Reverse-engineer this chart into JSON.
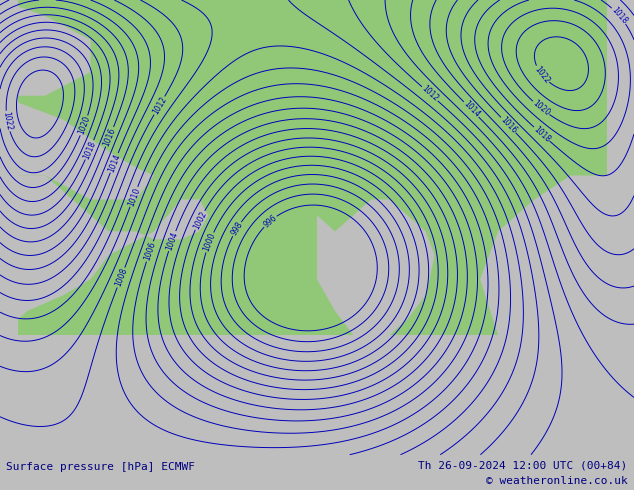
{
  "title_left": "Surface pressure [hPa] ECMWF",
  "title_right": "Th 26-09-2024 12:00 UTC (00+84)",
  "copyright": "© weatheronline.co.uk",
  "bg_color": "#bebebe",
  "land_color": "#90c878",
  "sea_color": "#bebebe",
  "contour_color": "#0000bb",
  "contour_linewidth": 0.7,
  "label_color": "#0000bb",
  "figsize": [
    6.34,
    4.9
  ],
  "dpi": 100,
  "bottom_bar_color": "#c8c8c8",
  "bottom_text_color": "#000080",
  "font_size_bottom": 8
}
